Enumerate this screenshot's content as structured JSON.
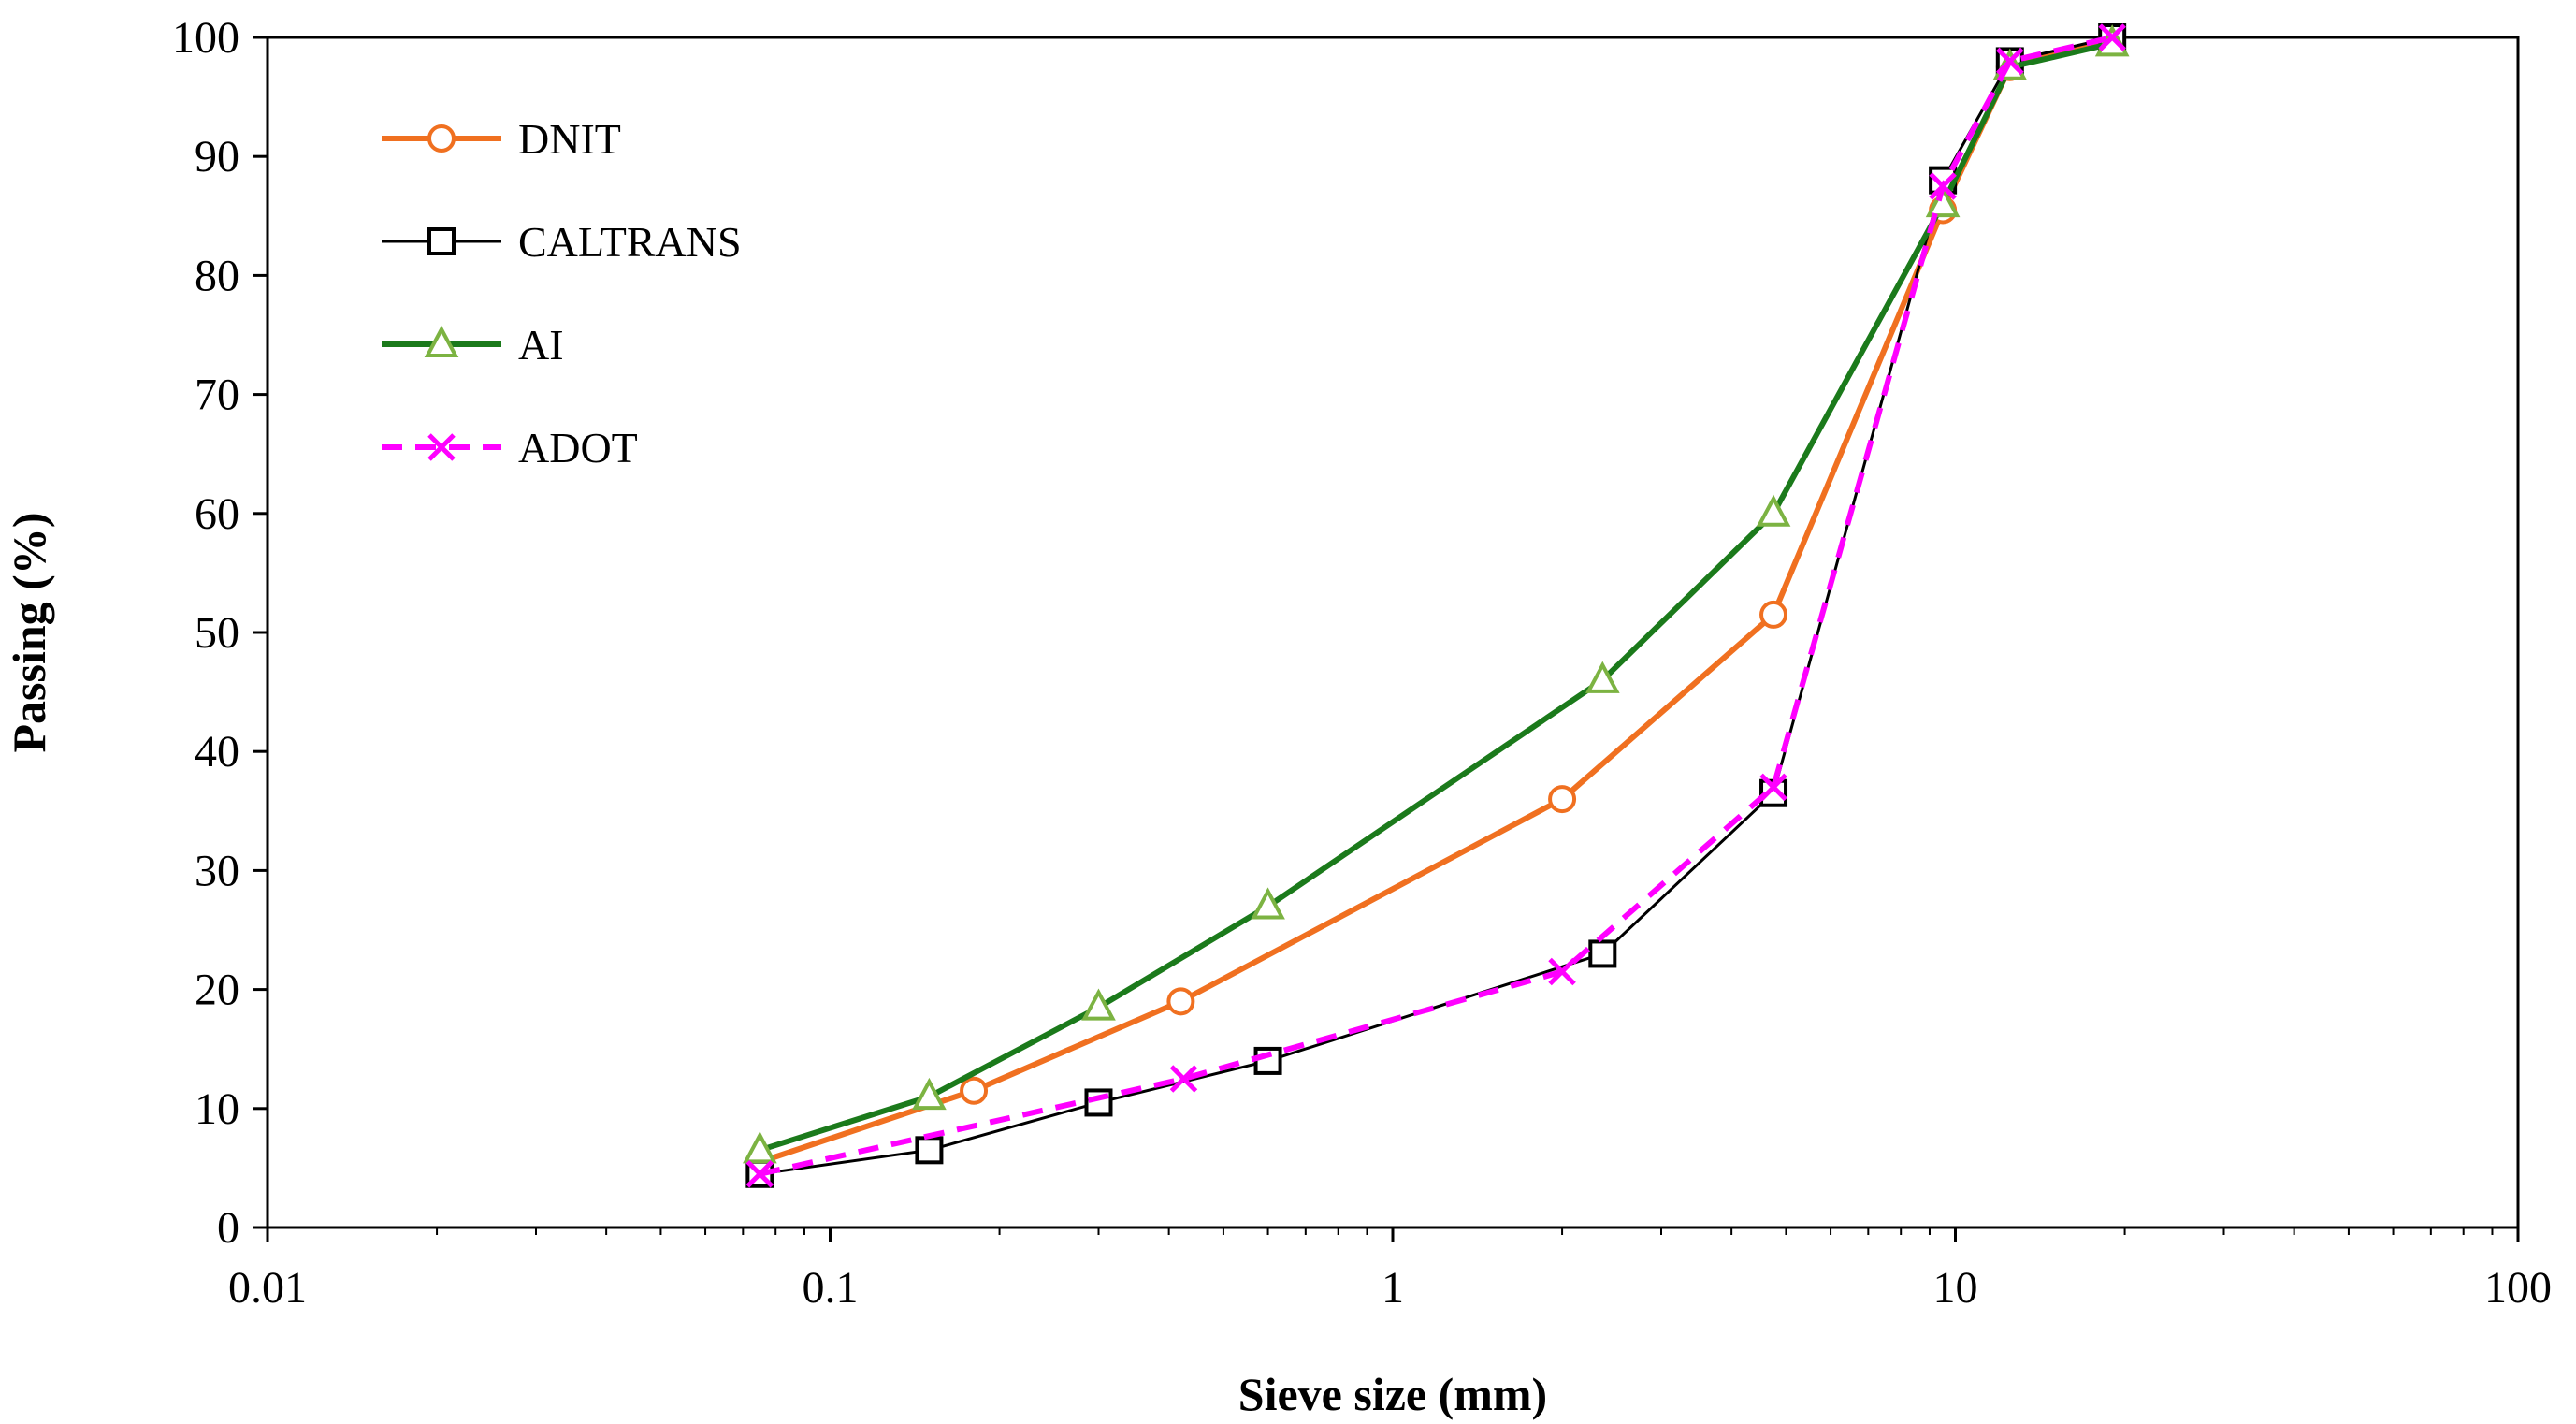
{
  "chart_data": {
    "type": "line",
    "title": "",
    "xlabel": "Sieve size (mm)",
    "ylabel": "Passing  (%)",
    "xscale": "log",
    "xlim": [
      0.01,
      100
    ],
    "ylim": [
      0,
      100
    ],
    "x_ticks": [
      0.01,
      0.1,
      1,
      10,
      100
    ],
    "x_tick_labels": [
      "0.01",
      "0.1",
      "1",
      "10",
      "100"
    ],
    "y_ticks": [
      0,
      10,
      20,
      30,
      40,
      50,
      60,
      70,
      80,
      90,
      100
    ],
    "y_tick_labels": [
      "0",
      "10",
      "20",
      "30",
      "40",
      "50",
      "60",
      "70",
      "80",
      "90",
      "100"
    ],
    "grid": false,
    "legend_position": "top-left",
    "series": [
      {
        "name": "DNIT",
        "color": "#F07020",
        "marker": "circle",
        "line_style": "solid",
        "x": [
          0.075,
          0.18,
          0.42,
          2.0,
          4.75,
          9.5,
          12.5,
          19.0
        ],
        "values": [
          5.5,
          11.5,
          19.0,
          36.0,
          51.5,
          85.5,
          97.5,
          100
        ]
      },
      {
        "name": "CALTRANS",
        "color": "#000000",
        "marker": "square",
        "line_style": "solid",
        "x": [
          0.075,
          0.15,
          0.3,
          0.6,
          2.36,
          4.75,
          9.5,
          12.5,
          19.0
        ],
        "values": [
          4.5,
          6.5,
          10.5,
          14.0,
          23.0,
          36.5,
          88.0,
          98.0,
          100
        ]
      },
      {
        "name": "AI",
        "color": "#1B7A1B",
        "marker_color": "#7CB342",
        "marker": "triangle",
        "line_style": "solid",
        "x": [
          0.075,
          0.15,
          0.3,
          0.6,
          2.36,
          4.75,
          9.5,
          12.5,
          19.0
        ],
        "values": [
          6.5,
          11.0,
          18.5,
          27.0,
          46.0,
          60.0,
          86.0,
          97.5,
          99.5
        ]
      },
      {
        "name": "ADOT",
        "color": "#FF00FF",
        "marker": "x",
        "line_style": "dashed",
        "x": [
          0.075,
          0.425,
          2.0,
          4.75,
          9.5,
          12.5,
          19.0
        ],
        "values": [
          4.5,
          12.5,
          21.5,
          37.0,
          87.5,
          98.0,
          100
        ]
      }
    ]
  }
}
